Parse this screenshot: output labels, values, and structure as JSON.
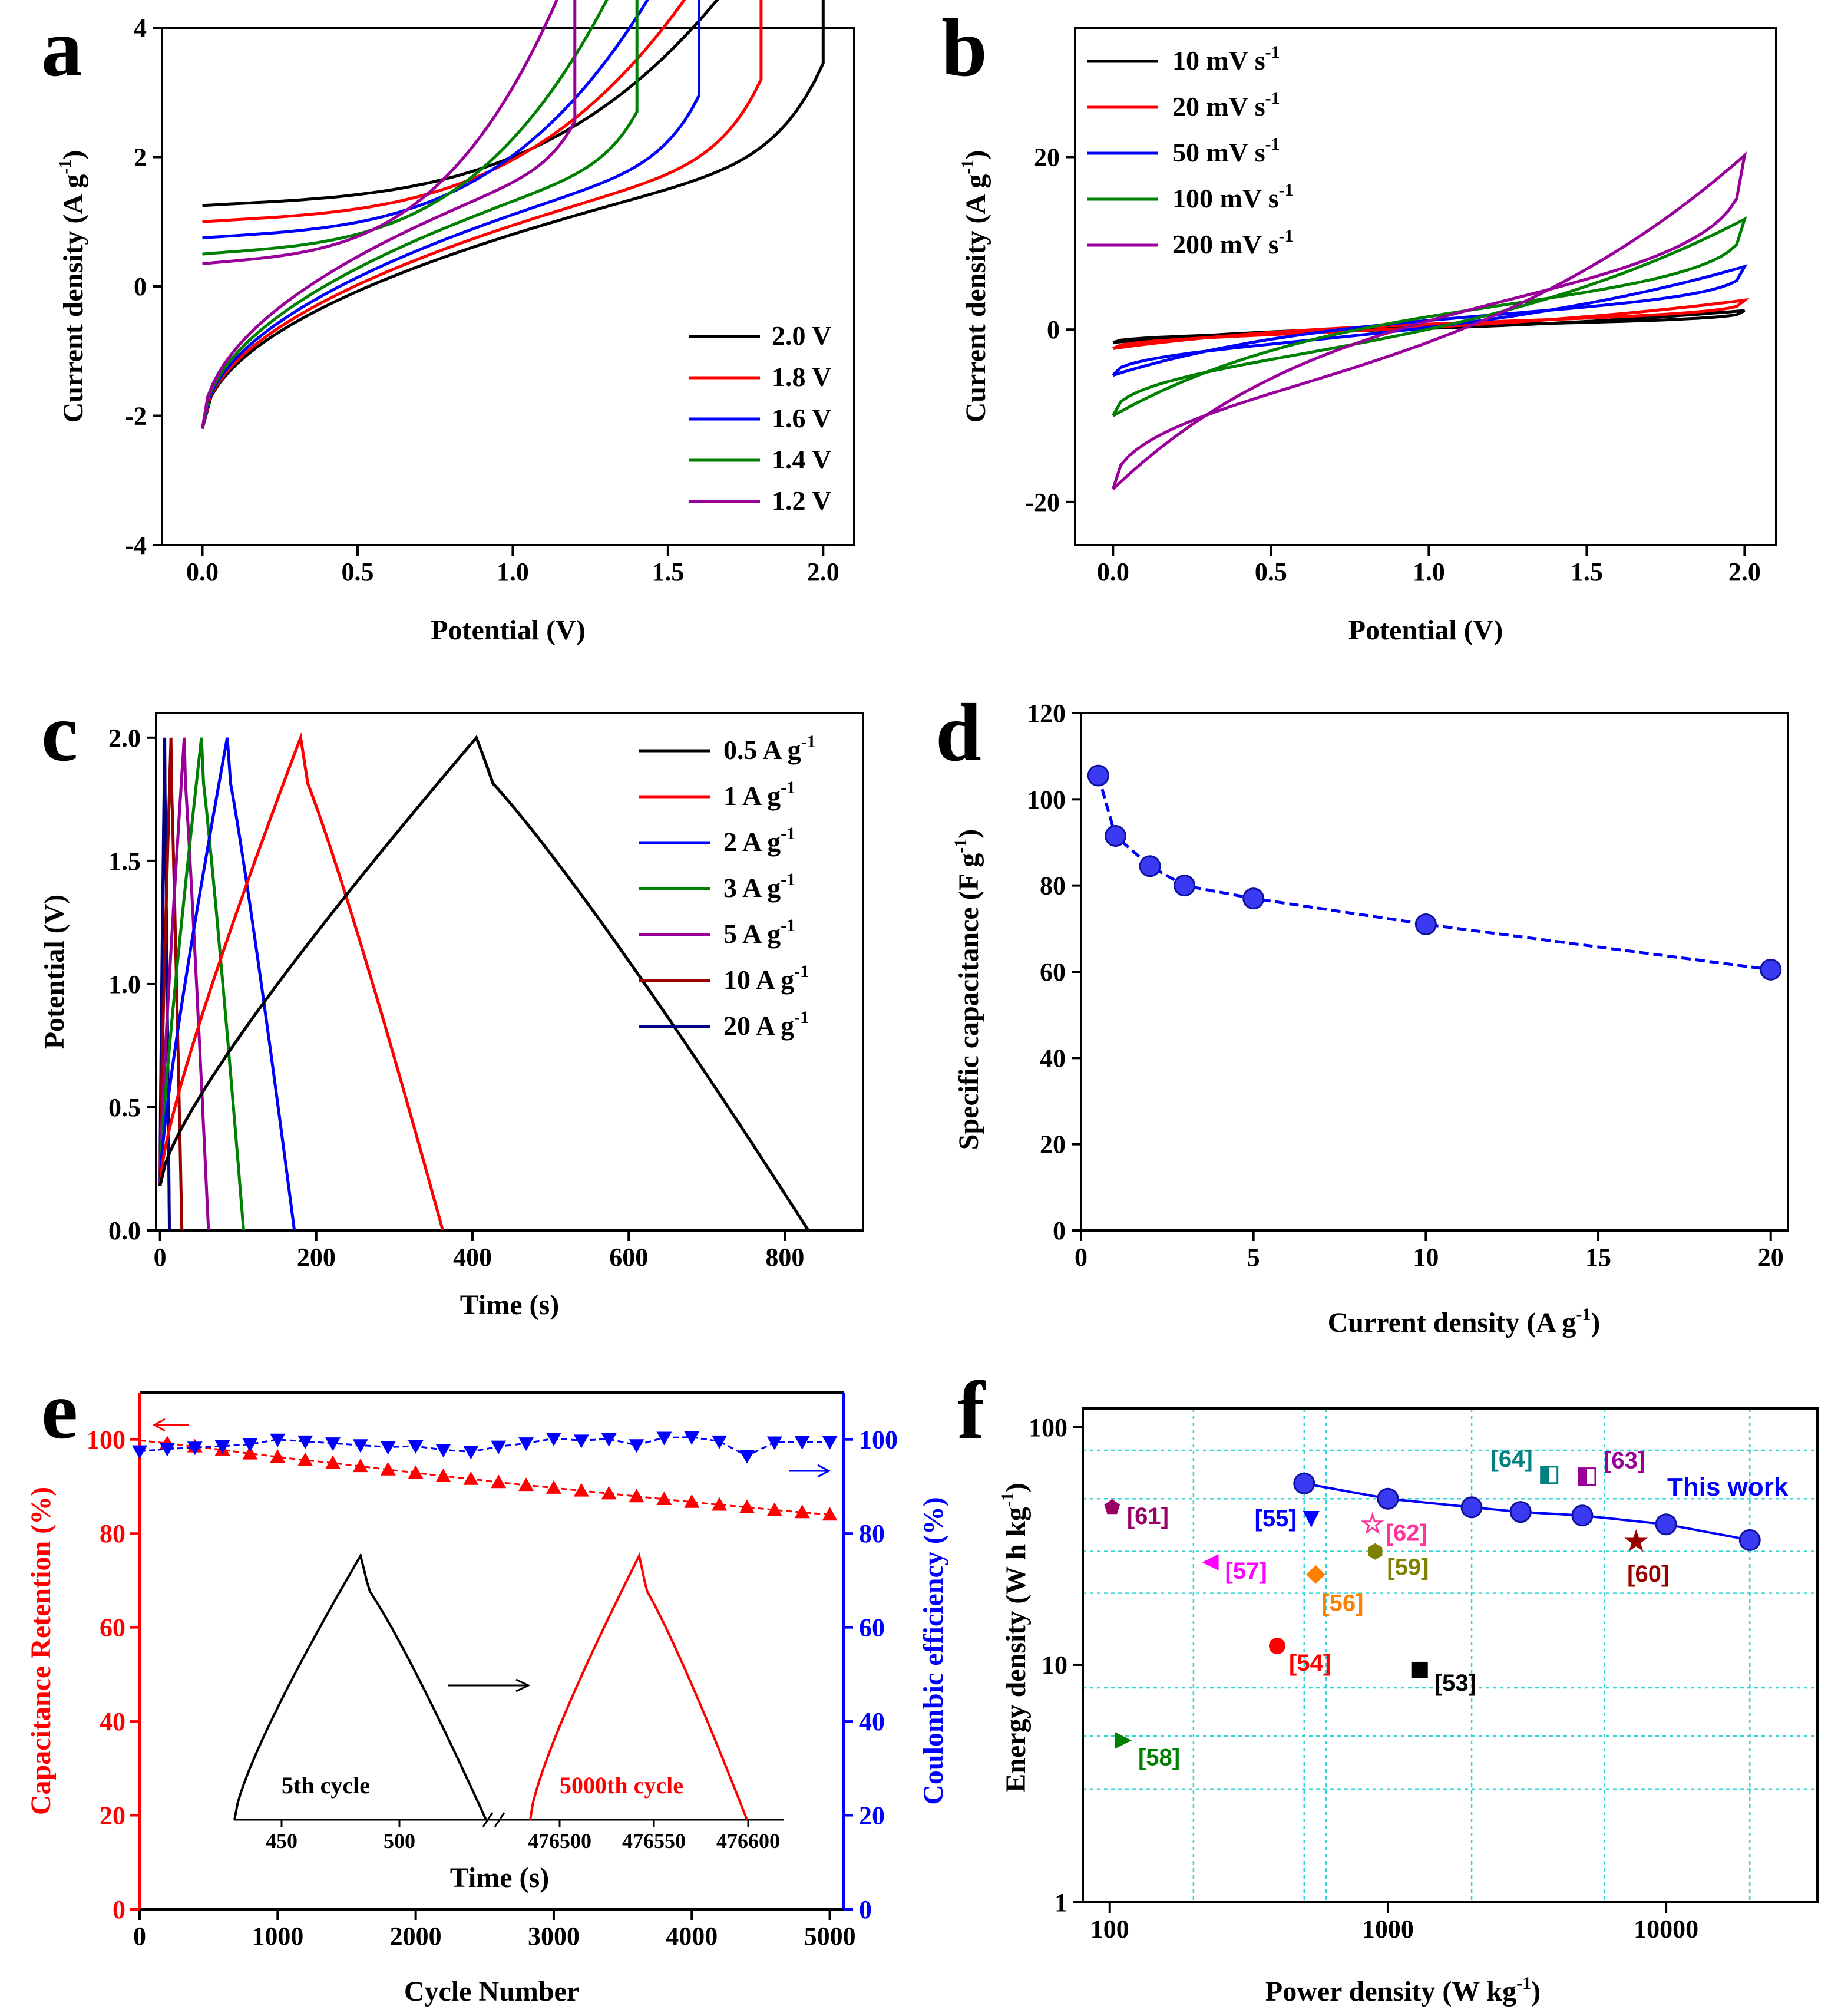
{
  "figure": {
    "panel_labels": [
      "a",
      "b",
      "c",
      "d",
      "e",
      "f"
    ]
  },
  "chart_data": [
    {
      "panel": "a",
      "type": "line",
      "xlabel": "Potential (V)",
      "ylabel": "Current density (A g-1)",
      "xlim": [
        -0.13,
        2.1
      ],
      "ylim": [
        -4,
        4
      ],
      "xticks": [
        "0.0",
        "0.5",
        "1.0",
        "1.5",
        "2.0"
      ],
      "yticks": [
        "-4",
        "-2",
        "0",
        "2",
        "4"
      ],
      "series": [
        {
          "name": "2.0 V",
          "color": "#000000",
          "vmax": 2.0,
          "ipeak": 3.45
        },
        {
          "name": "1.8 V",
          "color": "#ff0000",
          "vmax": 1.8,
          "ipeak": 3.2
        },
        {
          "name": "1.6 V",
          "color": "#0000ff",
          "vmax": 1.6,
          "ipeak": 2.95
        },
        {
          "name": "1.4 V",
          "color": "#008000",
          "vmax": 1.4,
          "ipeak": 2.7
        },
        {
          "name": "1.2 V",
          "color": "#990099",
          "vmax": 1.2,
          "ipeak": 2.55
        }
      ]
    },
    {
      "panel": "b",
      "type": "line",
      "xlabel": "Potential (V)",
      "ylabel": "Current density (A g-1)",
      "xlim": [
        -0.12,
        2.1
      ],
      "ylim": [
        -25,
        35
      ],
      "xticks": [
        "0.0",
        "0.5",
        "1.0",
        "1.5",
        "2.0"
      ],
      "yticks": [
        "-20",
        "0",
        "20"
      ],
      "series": [
        {
          "name": "10 mV s",
          "unit_sup": "-1",
          "color": "#000000",
          "pos": 2.2,
          "neg": -1.5
        },
        {
          "name": "20 mV s",
          "unit_sup": "-1",
          "color": "#ff0000",
          "pos": 3.4,
          "neg": -2.2
        },
        {
          "name": "50 mV s",
          "unit_sup": "-1",
          "color": "#0000ff",
          "pos": 7.3,
          "neg": -5.3
        },
        {
          "name": "100 mV s",
          "unit_sup": "-1",
          "color": "#008000",
          "pos": 12.8,
          "neg": -10.0
        },
        {
          "name": "200 mV s",
          "unit_sup": "-1",
          "color": "#990099",
          "pos": 20.2,
          "neg": -18.5
        }
      ]
    },
    {
      "panel": "c",
      "type": "line",
      "xlabel": "Time (s)",
      "ylabel": "Potential (V)",
      "xlim": [
        -5,
        900
      ],
      "ylim": [
        0,
        2.1
      ],
      "xticks": [
        "0",
        "200",
        "400",
        "600",
        "800"
      ],
      "yticks": [
        "0.0",
        "0.5",
        "1.0",
        "1.5",
        "2.0"
      ],
      "series": [
        {
          "name": "0.5 A g",
          "unit_sup": "-1",
          "color": "#000000",
          "t_peak": 405,
          "t_end": 830
        },
        {
          "name": "1 A g",
          "unit_sup": "-1",
          "color": "#ff0000",
          "t_peak": 180,
          "t_end": 362
        },
        {
          "name": "2 A g",
          "unit_sup": "-1",
          "color": "#0000ff",
          "t_peak": 86,
          "t_end": 172
        },
        {
          "name": "3 A g",
          "unit_sup": "-1",
          "color": "#008000",
          "t_peak": 53,
          "t_end": 107
        },
        {
          "name": "5 A g",
          "unit_sup": "-1",
          "color": "#990099",
          "t_peak": 31,
          "t_end": 62
        },
        {
          "name": "10 A g",
          "unit_sup": "-1",
          "color": "#990000",
          "t_peak": 14,
          "t_end": 28
        },
        {
          "name": "20 A g",
          "unit_sup": "-1",
          "color": "#000080",
          "t_peak": 6,
          "t_end": 12
        }
      ]
    },
    {
      "panel": "d",
      "type": "line",
      "xlabel": "Current density (A g-1)",
      "ylabel": "Specific capacitance (F g-1)",
      "xlim": [
        0,
        20.5
      ],
      "ylim": [
        0,
        120
      ],
      "xticks": [
        "0",
        "5",
        "10",
        "15",
        "20"
      ],
      "yticks": [
        "0",
        "20",
        "40",
        "60",
        "80",
        "100",
        "120"
      ],
      "x": [
        0.5,
        1,
        2,
        3,
        5,
        10,
        20
      ],
      "y": [
        105.5,
        91.5,
        84.5,
        80,
        77,
        71,
        60.5
      ]
    },
    {
      "panel": "e",
      "type": "line",
      "xlabel": "Cycle Number",
      "ylabel": "Capacitance Retention (%)",
      "ylabel_right": "Coulombic efficiency (%)",
      "xlim": [
        0,
        5100
      ],
      "ylim": [
        0,
        110
      ],
      "xticks": [
        "0",
        "1000",
        "2000",
        "3000",
        "4000",
        "5000"
      ],
      "yticks": [
        "0",
        "20",
        "40",
        "60",
        "80",
        "100"
      ],
      "retention": {
        "x": [
          0,
          200,
          400,
          600,
          800,
          1000,
          1200,
          1400,
          1600,
          1800,
          2000,
          2200,
          2400,
          2600,
          2800,
          3000,
          3200,
          3400,
          3600,
          3800,
          4000,
          4200,
          4400,
          4600,
          4800,
          5000
        ],
        "y": [
          99.8,
          99.2,
          98.5,
          97.8,
          97.0,
          96.3,
          95.6,
          95.0,
          94.3,
          93.6,
          92.9,
          92.2,
          91.6,
          90.9,
          90.3,
          89.7,
          89.1,
          88.5,
          87.9,
          87.3,
          86.7,
          86.1,
          85.6,
          85.0,
          84.5,
          84.0
        ]
      },
      "coulombic": {
        "x": [
          0,
          200,
          400,
          600,
          800,
          1000,
          1200,
          1400,
          1600,
          1800,
          2000,
          2200,
          2400,
          2600,
          2800,
          3000,
          3200,
          3400,
          3600,
          3800,
          4000,
          4200,
          4400,
          4600,
          4800,
          5000
        ],
        "y": [
          97.5,
          98,
          98.3,
          98.6,
          99,
          100,
          99.6,
          99.2,
          98.8,
          98.4,
          98.6,
          97.8,
          97.4,
          98.5,
          99.2,
          100.2,
          99.8,
          100.1,
          98.8,
          100.4,
          100.5,
          99.6,
          96.5,
          99.4,
          99.5,
          99.5
        ]
      },
      "inset": {
        "xlabel": "Time (s)",
        "ticks_left": [
          "450",
          "500"
        ],
        "ticks_right": [
          "476500",
          "476550",
          "476600"
        ],
        "label_first": "5th cycle",
        "label_last": "5000th cycle"
      }
    },
    {
      "panel": "f",
      "type": "scatter",
      "xlabel": "Power density (W kg-1)",
      "ylabel": "Energy density (W h kg-1)",
      "xscale": "log",
      "yscale": "log",
      "xlim": [
        80,
        35000
      ],
      "ylim": [
        1,
        120
      ],
      "xticks": [
        "100",
        "1000",
        "10000"
      ],
      "yticks": [
        "1",
        "10",
        "100"
      ],
      "this_work": {
        "label": "This work",
        "x": [
          500,
          1000,
          2000,
          3000,
          5000,
          10000,
          20000
        ],
        "y": [
          58,
          50,
          46,
          44,
          42.5,
          39,
          33.5
        ]
      },
      "refs": [
        {
          "label": "[53]",
          "x": 1300,
          "y": 9.5,
          "color": "#000000",
          "shape": "square"
        },
        {
          "label": "[54]",
          "x": 400,
          "y": 12,
          "color": "#ff0000",
          "shape": "circle"
        },
        {
          "label": "[55]",
          "x": 530,
          "y": 41,
          "color": "#0000ff",
          "shape": "tri-down"
        },
        {
          "label": "[56]",
          "x": 550,
          "y": 24,
          "color": "#ff7f00",
          "shape": "diamond"
        },
        {
          "label": "[57]",
          "x": 230,
          "y": 27,
          "color": "#ff00ff",
          "shape": "tri-left"
        },
        {
          "label": "[58]",
          "x": 112,
          "y": 4.8,
          "color": "#008000",
          "shape": "tri-right"
        },
        {
          "label": "[59]",
          "x": 900,
          "y": 30,
          "color": "#808000",
          "shape": "hexagon"
        },
        {
          "label": "[60]",
          "x": 7800,
          "y": 33,
          "color": "#990000",
          "shape": "star"
        },
        {
          "label": "[61]",
          "x": 102,
          "y": 46,
          "color": "#990066",
          "shape": "pentagon"
        },
        {
          "label": "[62]",
          "x": 880,
          "y": 39,
          "color": "#ff3399",
          "shape": "star-open"
        },
        {
          "label": "[63]",
          "x": 5200,
          "y": 62,
          "color": "#990099",
          "shape": "half-square"
        },
        {
          "label": "[64]",
          "x": 3800,
          "y": 63,
          "color": "#008080",
          "shape": "half-square"
        }
      ]
    }
  ]
}
